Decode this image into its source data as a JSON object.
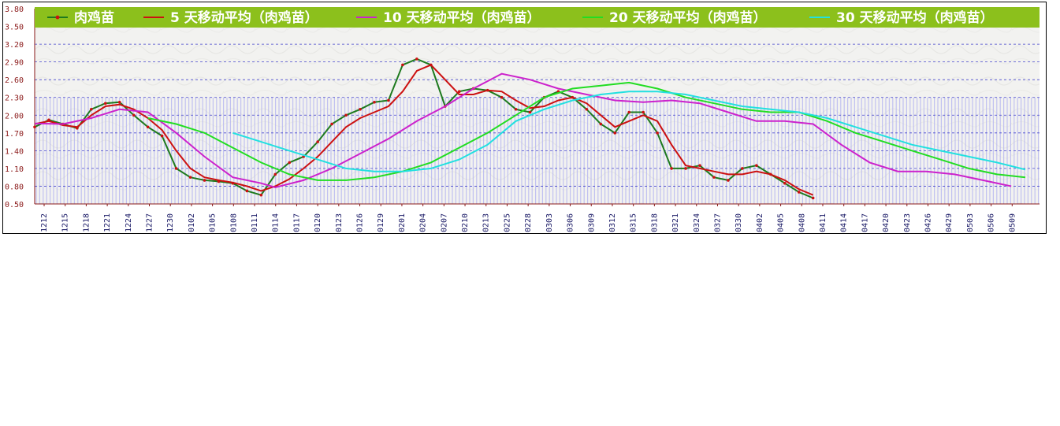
{
  "chart_data": {
    "type": "line",
    "title": "",
    "xlabel": "",
    "ylabel": "",
    "ylim": [
      0.5,
      3.8
    ],
    "y_ticks": [
      "0.50",
      "0.80",
      "1.10",
      "1.40",
      "1.70",
      "2.00",
      "2.30",
      "2.60",
      "2.90",
      "3.20",
      "3.50",
      "3.80"
    ],
    "x_tick_labels": [
      "1212",
      "1215",
      "1218",
      "1221",
      "1224",
      "1227",
      "1230",
      "0102",
      "0105",
      "0108",
      "0111",
      "0114",
      "0117",
      "0120",
      "0123",
      "0126",
      "0129",
      "0201",
      "0204",
      "0207",
      "0210",
      "0213",
      "0225",
      "0228",
      "0303",
      "0306",
      "0309",
      "0312",
      "0315",
      "0318",
      "0321",
      "0324",
      "0327",
      "0330",
      "0402",
      "0405",
      "0408",
      "0411",
      "0414",
      "0417",
      "0420",
      "0423",
      "0426",
      "0429",
      "0503",
      "0506",
      "0509"
    ],
    "grid": true,
    "legend_position": "top",
    "background_color": "#f2f2f0",
    "legend_band_color": "#8cc01c",
    "bar_color": "#b6b6f0",
    "series": [
      {
        "name": "肉鸡苗",
        "color": "#1e7a1e",
        "marker_color": "#cc1111",
        "values": [
          [
            0,
            1.8
          ],
          [
            1,
            1.92
          ],
          [
            2,
            1.85
          ],
          [
            3,
            1.78
          ],
          [
            4,
            2.1
          ],
          [
            5,
            2.2
          ],
          [
            6,
            2.22
          ],
          [
            7,
            2.0
          ],
          [
            8,
            1.8
          ],
          [
            9,
            1.65
          ],
          [
            10,
            1.1
          ],
          [
            11,
            0.95
          ],
          [
            12,
            0.9
          ],
          [
            13,
            0.88
          ],
          [
            14,
            0.85
          ],
          [
            15,
            0.72
          ],
          [
            16,
            0.65
          ],
          [
            17,
            1.0
          ],
          [
            18,
            1.2
          ],
          [
            19,
            1.3
          ],
          [
            20,
            1.55
          ],
          [
            21,
            1.85
          ],
          [
            22,
            2.0
          ],
          [
            23,
            2.1
          ],
          [
            24,
            2.22
          ],
          [
            25,
            2.25
          ],
          [
            26,
            2.85
          ],
          [
            27,
            2.95
          ],
          [
            28,
            2.85
          ],
          [
            29,
            2.15
          ],
          [
            30,
            2.4
          ],
          [
            31,
            2.45
          ],
          [
            32,
            2.42
          ],
          [
            33,
            2.3
          ],
          [
            34,
            2.1
          ],
          [
            35,
            2.05
          ],
          [
            36,
            2.3
          ],
          [
            37,
            2.4
          ],
          [
            38,
            2.3
          ],
          [
            39,
            2.1
          ],
          [
            40,
            1.85
          ],
          [
            41,
            1.7
          ],
          [
            42,
            2.05
          ],
          [
            43,
            2.05
          ],
          [
            44,
            1.7
          ],
          [
            45,
            1.1
          ],
          [
            46,
            1.1
          ],
          [
            47,
            1.15
          ],
          [
            48,
            0.95
          ],
          [
            49,
            0.9
          ],
          [
            50,
            1.1
          ],
          [
            51,
            1.15
          ],
          [
            52,
            1.0
          ],
          [
            53,
            0.85
          ],
          [
            54,
            0.7
          ],
          [
            55,
            0.6
          ]
        ]
      },
      {
        "name": "5 天移动平均（肉鸡苗）",
        "color": "#cc1111",
        "values": [
          [
            0,
            1.85
          ],
          [
            1,
            1.9
          ],
          [
            2,
            1.83
          ],
          [
            3,
            1.8
          ],
          [
            4,
            2.0
          ],
          [
            5,
            2.15
          ],
          [
            6,
            2.18
          ],
          [
            7,
            2.1
          ],
          [
            8,
            1.95
          ],
          [
            9,
            1.75
          ],
          [
            10,
            1.4
          ],
          [
            11,
            1.1
          ],
          [
            12,
            0.95
          ],
          [
            13,
            0.9
          ],
          [
            14,
            0.86
          ],
          [
            15,
            0.8
          ],
          [
            16,
            0.72
          ],
          [
            17,
            0.8
          ],
          [
            18,
            0.92
          ],
          [
            19,
            1.1
          ],
          [
            20,
            1.3
          ],
          [
            21,
            1.55
          ],
          [
            22,
            1.8
          ],
          [
            23,
            1.95
          ],
          [
            24,
            2.05
          ],
          [
            25,
            2.15
          ],
          [
            26,
            2.4
          ],
          [
            27,
            2.75
          ],
          [
            28,
            2.85
          ],
          [
            29,
            2.6
          ],
          [
            30,
            2.35
          ],
          [
            31,
            2.35
          ],
          [
            32,
            2.42
          ],
          [
            33,
            2.4
          ],
          [
            34,
            2.25
          ],
          [
            35,
            2.12
          ],
          [
            36,
            2.15
          ],
          [
            37,
            2.25
          ],
          [
            38,
            2.3
          ],
          [
            39,
            2.2
          ],
          [
            40,
            2.0
          ],
          [
            41,
            1.8
          ],
          [
            42,
            1.9
          ],
          [
            43,
            2.0
          ],
          [
            44,
            1.9
          ],
          [
            45,
            1.5
          ],
          [
            46,
            1.15
          ],
          [
            47,
            1.1
          ],
          [
            48,
            1.05
          ],
          [
            49,
            1.0
          ],
          [
            50,
            1.0
          ],
          [
            51,
            1.05
          ],
          [
            52,
            1.0
          ],
          [
            53,
            0.9
          ],
          [
            54,
            0.75
          ],
          [
            55,
            0.65
          ]
        ]
      },
      {
        "name": "10 天移动平均（肉鸡苗）",
        "color": "#cc22cc",
        "values": [
          [
            0,
            1.86
          ],
          [
            2,
            1.85
          ],
          [
            4,
            1.95
          ],
          [
            6,
            2.1
          ],
          [
            8,
            2.05
          ],
          [
            10,
            1.7
          ],
          [
            12,
            1.3
          ],
          [
            14,
            0.95
          ],
          [
            16,
            0.85
          ],
          [
            17,
            0.78
          ],
          [
            19,
            0.9
          ],
          [
            21,
            1.1
          ],
          [
            23,
            1.35
          ],
          [
            25,
            1.6
          ],
          [
            27,
            1.9
          ],
          [
            29,
            2.15
          ],
          [
            31,
            2.45
          ],
          [
            33,
            2.7
          ],
          [
            35,
            2.6
          ],
          [
            37,
            2.45
          ],
          [
            39,
            2.35
          ],
          [
            41,
            2.25
          ],
          [
            43,
            2.22
          ],
          [
            45,
            2.25
          ],
          [
            47,
            2.2
          ],
          [
            49,
            2.05
          ],
          [
            51,
            1.9
          ],
          [
            53,
            1.9
          ],
          [
            55,
            1.85
          ],
          [
            57,
            1.5
          ],
          [
            59,
            1.2
          ],
          [
            61,
            1.05
          ],
          [
            63,
            1.05
          ],
          [
            65,
            1.0
          ],
          [
            67,
            0.9
          ],
          [
            69,
            0.8
          ]
        ]
      },
      {
        "name": "20 天移动平均（肉鸡苗）",
        "color": "#22dd22",
        "values": [
          [
            8,
            1.95
          ],
          [
            10,
            1.85
          ],
          [
            12,
            1.7
          ],
          [
            14,
            1.45
          ],
          [
            16,
            1.2
          ],
          [
            18,
            1.0
          ],
          [
            20,
            0.9
          ],
          [
            22,
            0.9
          ],
          [
            24,
            0.95
          ],
          [
            26,
            1.05
          ],
          [
            28,
            1.2
          ],
          [
            30,
            1.45
          ],
          [
            32,
            1.7
          ],
          [
            34,
            2.0
          ],
          [
            36,
            2.3
          ],
          [
            38,
            2.45
          ],
          [
            40,
            2.5
          ],
          [
            42,
            2.55
          ],
          [
            44,
            2.45
          ],
          [
            46,
            2.3
          ],
          [
            48,
            2.2
          ],
          [
            50,
            2.1
          ],
          [
            52,
            2.05
          ],
          [
            54,
            2.05
          ],
          [
            56,
            1.9
          ],
          [
            58,
            1.7
          ],
          [
            60,
            1.55
          ],
          [
            62,
            1.4
          ],
          [
            64,
            1.25
          ],
          [
            66,
            1.1
          ],
          [
            68,
            1.0
          ],
          [
            70,
            0.95
          ]
        ]
      },
      {
        "name": "30 天移动平均（肉鸡苗）",
        "color": "#22e0e0",
        "values": [
          [
            14,
            1.7
          ],
          [
            16,
            1.55
          ],
          [
            18,
            1.4
          ],
          [
            20,
            1.25
          ],
          [
            22,
            1.1
          ],
          [
            24,
            1.05
          ],
          [
            26,
            1.05
          ],
          [
            28,
            1.1
          ],
          [
            30,
            1.25
          ],
          [
            32,
            1.5
          ],
          [
            34,
            1.9
          ],
          [
            36,
            2.1
          ],
          [
            38,
            2.25
          ],
          [
            40,
            2.35
          ],
          [
            42,
            2.4
          ],
          [
            44,
            2.4
          ],
          [
            46,
            2.35
          ],
          [
            48,
            2.25
          ],
          [
            50,
            2.15
          ],
          [
            52,
            2.1
          ],
          [
            54,
            2.05
          ],
          [
            56,
            1.95
          ],
          [
            58,
            1.8
          ],
          [
            60,
            1.65
          ],
          [
            62,
            1.5
          ],
          [
            64,
            1.4
          ],
          [
            66,
            1.3
          ],
          [
            68,
            1.2
          ],
          [
            70,
            1.08
          ]
        ]
      }
    ]
  }
}
